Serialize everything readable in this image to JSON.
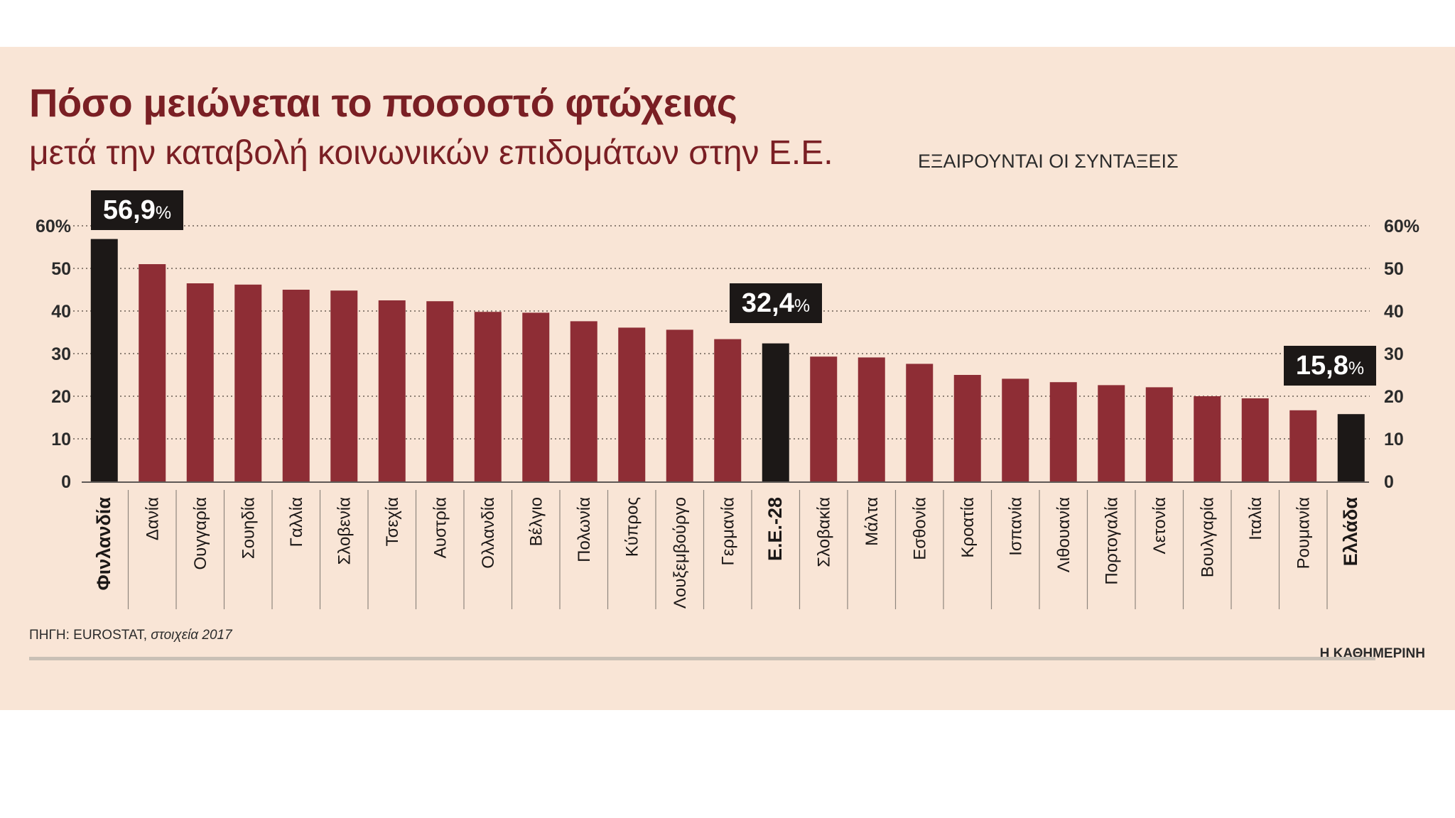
{
  "chart_data": {
    "type": "bar",
    "title": "Πόσο μειώνεται το ποσοστό φτώχειας",
    "subtitle": "μετά την καταβολή κοινωνικών επιδομάτων στην Ε.Ε.",
    "note": "ΕΞΑΙΡΟΥΝΤΑΙ ΟΙ ΣΥΝΤΑΞΕΙΣ",
    "unit": "%",
    "ylim": [
      0,
      60
    ],
    "yticks": [
      "0",
      "10",
      "20",
      "30",
      "40",
      "50",
      "60%"
    ],
    "categories": [
      "Φινλανδία",
      "Δανία",
      "Ουγγαρία",
      "Σουηδία",
      "Γαλλία",
      "Σλοβενία",
      "Τσεχία",
      "Αυστρία",
      "Ολλανδία",
      "Βέλγιο",
      "Πολωνία",
      "Κύπρος",
      "Λουξεμβούργο",
      "Γερμανία",
      "Ε.Ε.-28",
      "Σλοβακία",
      "Μάλτα",
      "Εσθονία",
      "Κροατία",
      "Ισπανία",
      "Λιθουανία",
      "Πορτογαλία",
      "Λετονία",
      "Βουλγαρία",
      "Ιταλία",
      "Ρουμανία",
      "Ελλάδα"
    ],
    "values": [
      56.9,
      51.0,
      46.5,
      46.2,
      45.0,
      44.8,
      42.5,
      42.3,
      39.8,
      39.6,
      37.6,
      36.1,
      35.6,
      33.4,
      32.4,
      29.3,
      29.1,
      27.6,
      25.0,
      24.1,
      23.3,
      22.6,
      22.1,
      20.0,
      19.5,
      16.7,
      15.8
    ],
    "highlighted": [
      "Φινλανδία",
      "Ε.Ε.-28",
      "Ελλάδα"
    ],
    "data_labels": [
      {
        "category": "Φινλανδία",
        "value": "56,9",
        "unit": "%"
      },
      {
        "category": "Ε.Ε.-28",
        "value": "32,4",
        "unit": "%"
      },
      {
        "category": "Ελλάδα",
        "value": "15,8",
        "unit": "%"
      }
    ],
    "grid": true,
    "colors": {
      "bar": "#8e2d35",
      "highlight": "#1c1817",
      "background": "#f9e5d6",
      "title": "#7a1f24"
    }
  },
  "source": {
    "prefix": "ΠΗΓΗ: EUROSTAT, ",
    "detail": "στοιχεία 2017"
  },
  "brand": "Η ΚΑΘΗΜΕΡΙΝΗ"
}
